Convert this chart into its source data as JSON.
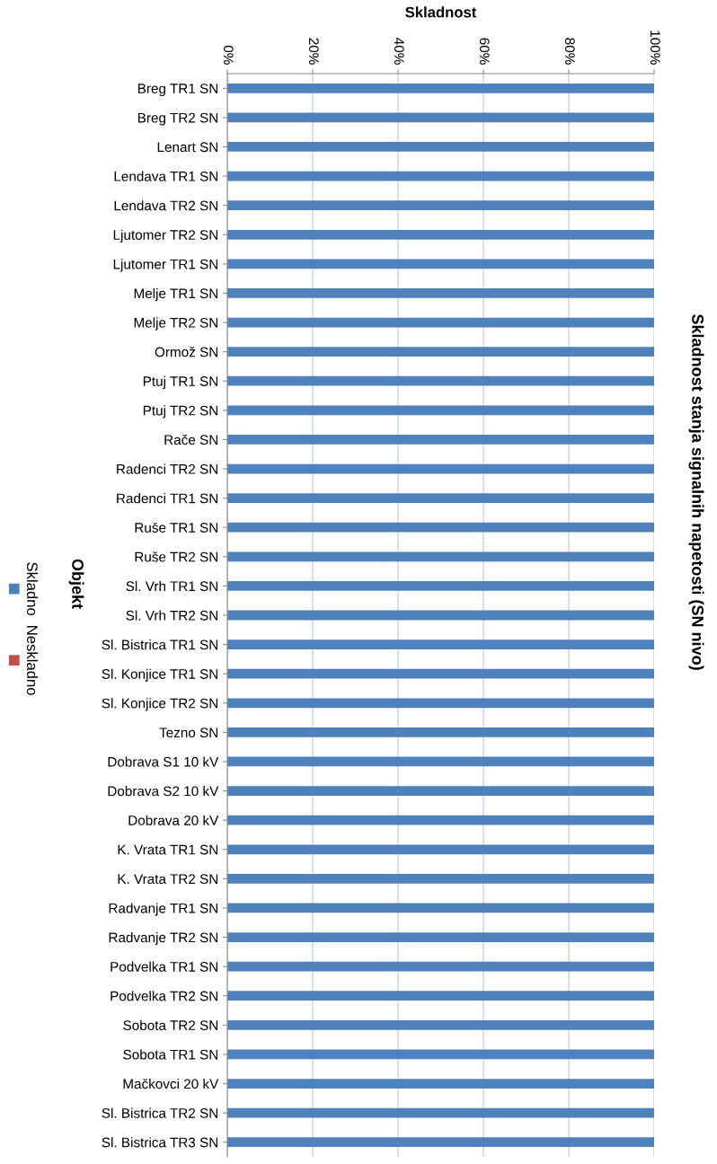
{
  "chart_data": {
    "type": "bar",
    "orientation": "horizontal",
    "title": "Skladnost stanja signalnih napetosti (SN nivo)",
    "xlabel": "Skladnost",
    "ylabel": "Objekt",
    "categories": [
      "Breg TR1 SN",
      "Breg TR2 SN",
      "Lenart SN",
      "Lendava TR1 SN",
      "Lendava TR2 SN",
      "Ljutomer TR2 SN",
      "Ljutomer TR1 SN",
      "Melje TR1 SN",
      "Melje TR2 SN",
      "Ormož SN",
      "Ptuj TR1 SN",
      "Ptuj TR2 SN",
      "Rače SN",
      "Radenci TR2 SN",
      "Radenci TR1 SN",
      "Ruše TR1 SN",
      "Ruše TR2 SN",
      "Sl. Vrh TR1 SN",
      "Sl. Vrh TR2 SN",
      "Sl. Bistrica TR1 SN",
      "Sl. Konjice TR1 SN",
      "Sl. Konjice TR2 SN",
      "Tezno SN",
      "Dobrava S1 10 kV",
      "Dobrava S2 10 kV",
      "Dobrava 20 kV",
      "K. Vrata TR1 SN",
      "K. Vrata TR2 SN",
      "Radvanje TR1 SN",
      "Radvanje TR2 SN",
      "Podvelka TR1 SN",
      "Podvelka TR2 SN",
      "Sobota TR2 SN",
      "Sobota TR1 SN",
      "Mačkovci 20 kV",
      "Sl. Bistrica TR2 SN",
      "Sl. Bistrica TR3 SN"
    ],
    "series": [
      {
        "name": "Skladno",
        "color": "#4f81bd",
        "values": [
          100,
          100,
          100,
          100,
          100,
          100,
          100,
          100,
          100,
          100,
          100,
          100,
          100,
          100,
          100,
          100,
          100,
          100,
          100,
          100,
          100,
          100,
          100,
          100,
          100,
          100,
          100,
          100,
          100,
          100,
          100,
          100,
          100,
          100,
          100,
          100,
          100
        ]
      },
      {
        "name": "Neskladno",
        "color": "#c0504d",
        "values": [
          0,
          0,
          0,
          0,
          0,
          0,
          0,
          0,
          0,
          0,
          0,
          0,
          0,
          0,
          0,
          0,
          0,
          0,
          0,
          0,
          0,
          0,
          0,
          0,
          0,
          0,
          0,
          0,
          0,
          0,
          0,
          0,
          0,
          0,
          0,
          0,
          0
        ]
      }
    ],
    "xlim": [
      0,
      100
    ],
    "xticks": [
      {
        "value": 0,
        "label": "0%"
      },
      {
        "value": 20,
        "label": "20%"
      },
      {
        "value": 40,
        "label": "40%"
      },
      {
        "value": 60,
        "label": "60%"
      },
      {
        "value": 80,
        "label": "80%"
      },
      {
        "value": 100,
        "label": "100%"
      }
    ],
    "grid": "x",
    "legend": "left"
  }
}
